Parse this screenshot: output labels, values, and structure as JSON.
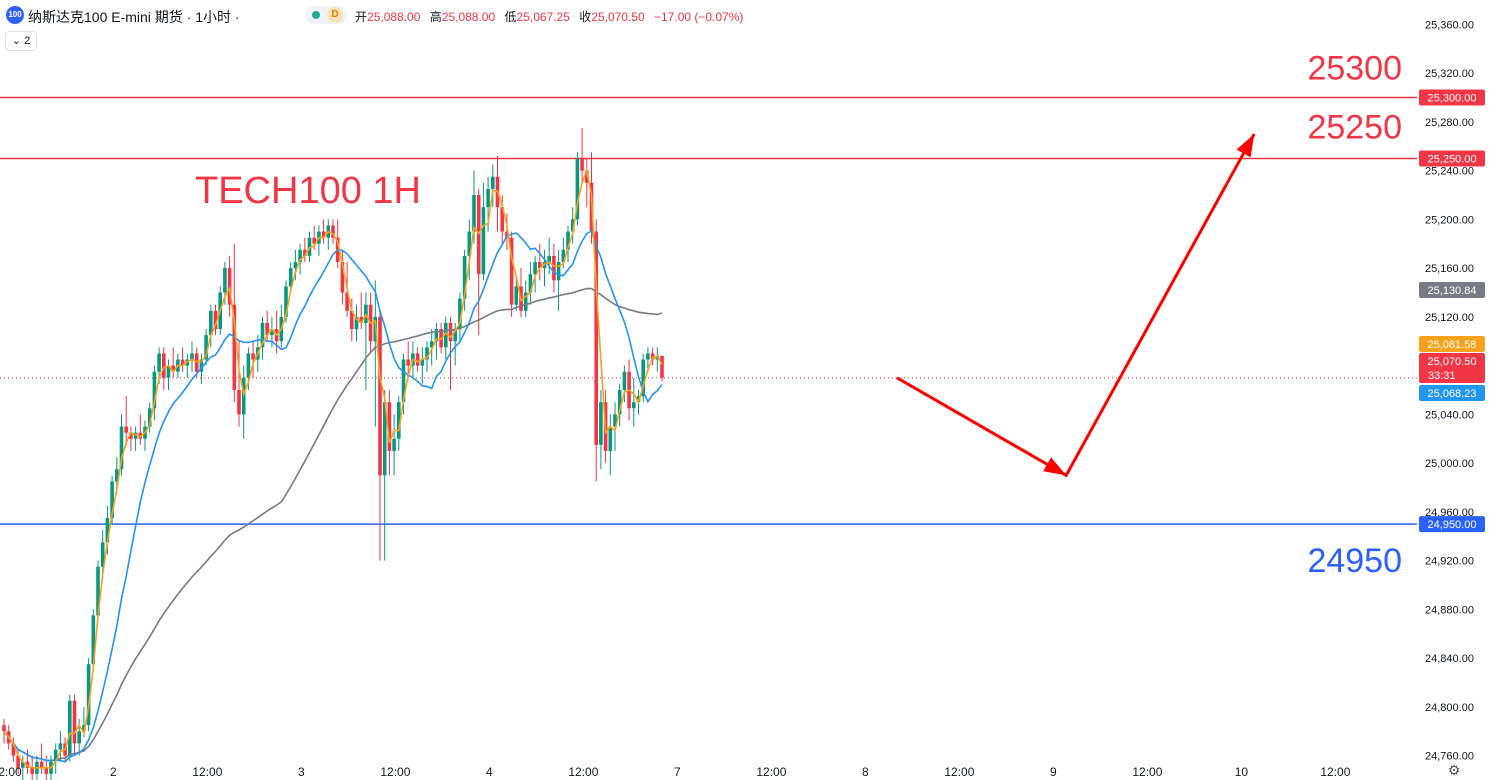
{
  "header": {
    "logo_text": "100",
    "title": "纳斯达克100 E-mini 期货 · 1小时 ·",
    "badge_letter": "D",
    "ohlc": [
      {
        "key": "开",
        "value": "25,088.00"
      },
      {
        "key": "高",
        "value": "25,088.00"
      },
      {
        "key": "低",
        "value": "25,067.25"
      },
      {
        "key": "收",
        "value": "25,070.50"
      }
    ],
    "change": "−17.00 (−0.07%)",
    "indicator_toggle": "⌄ 2"
  },
  "chart_data": {
    "type": "candlestick",
    "title": "TECH100 1H",
    "y_range": [
      24740,
      25380
    ],
    "y_ticks": [
      "25,360.00",
      "25,320.00",
      "25,280.00",
      "25,240.00",
      "25,200.00",
      "25,160.00",
      "25,120.00",
      "25,080.00",
      "25,040.00",
      "25,000.00",
      "24,960.00",
      "24,920.00",
      "24,880.00",
      "24,840.00",
      "24,800.00",
      "24,760.00"
    ],
    "y_tick_values": [
      25360,
      25320,
      25280,
      25240,
      25200,
      25160,
      25120,
      25080,
      25040,
      25000,
      24960,
      24920,
      24880,
      24840,
      24800,
      24760
    ],
    "x_labels": [
      {
        "label": "2:00",
        "bar": 0
      },
      {
        "label": "2",
        "bar": 22
      },
      {
        "label": "12:00",
        "bar": 42
      },
      {
        "label": "3",
        "bar": 62
      },
      {
        "label": "12:00",
        "bar": 82
      },
      {
        "label": "4",
        "bar": 102
      },
      {
        "label": "12:00",
        "bar": 122
      },
      {
        "label": "7",
        "bar": 142
      },
      {
        "label": "12:00",
        "bar": 162
      },
      {
        "label": "8",
        "bar": 182
      },
      {
        "label": "12:00",
        "bar": 202
      },
      {
        "label": "9",
        "bar": 222
      },
      {
        "label": "12:00",
        "bar": 242
      },
      {
        "label": "10",
        "bar": 262
      },
      {
        "label": "12:00",
        "bar": 282
      }
    ],
    "candles": [
      [
        24785,
        24790,
        24770,
        24780
      ],
      [
        24780,
        24785,
        24765,
        24770
      ],
      [
        24770,
        24775,
        24755,
        24760
      ],
      [
        24760,
        24765,
        24745,
        24750
      ],
      [
        24750,
        24760,
        24740,
        24755
      ],
      [
        24755,
        24765,
        24745,
        24750
      ],
      [
        24750,
        24760,
        24740,
        24745
      ],
      [
        24745,
        24760,
        24735,
        24755
      ],
      [
        24755,
        24770,
        24745,
        24750
      ],
      [
        24750,
        24760,
        24740,
        24745
      ],
      [
        24745,
        24760,
        24735,
        24755
      ],
      [
        24755,
        24770,
        24745,
        24765
      ],
      [
        24765,
        24780,
        24755,
        24770
      ],
      [
        24770,
        24775,
        24755,
        24760
      ],
      [
        24760,
        24810,
        24755,
        24805
      ],
      [
        24805,
        24810,
        24760,
        24770
      ],
      [
        24770,
        24790,
        24760,
        24780
      ],
      [
        24780,
        24800,
        24775,
        24785
      ],
      [
        24785,
        24840,
        24780,
        24835
      ],
      [
        24835,
        24880,
        24830,
        24875
      ],
      [
        24875,
        24920,
        24870,
        24915
      ],
      [
        24915,
        24945,
        24905,
        24935
      ],
      [
        24935,
        24965,
        24925,
        24955
      ],
      [
        24955,
        24990,
        24950,
        24985
      ],
      [
        24985,
        25005,
        24975,
        24995
      ],
      [
        24995,
        25040,
        24990,
        25030
      ],
      [
        25030,
        25055,
        25015,
        25025
      ],
      [
        25025,
        25030,
        25010,
        25020
      ],
      [
        25020,
        25030,
        25010,
        25025
      ],
      [
        25025,
        25040,
        25015,
        25020
      ],
      [
        25020,
        25035,
        25010,
        25030
      ],
      [
        25030,
        25050,
        25025,
        25045
      ],
      [
        25045,
        25080,
        25035,
        25075
      ],
      [
        25075,
        25095,
        25065,
        25090
      ],
      [
        25090,
        25095,
        25060,
        25070
      ],
      [
        25070,
        25085,
        25060,
        25080
      ],
      [
        25080,
        25095,
        25070,
        25075
      ],
      [
        25075,
        25090,
        25070,
        25085
      ],
      [
        25085,
        25095,
        25075,
        25080
      ],
      [
        25080,
        25090,
        25070,
        25085
      ],
      [
        25085,
        25100,
        25075,
        25090
      ],
      [
        25090,
        25095,
        25070,
        25075
      ],
      [
        25075,
        25090,
        25065,
        25085
      ],
      [
        25085,
        25110,
        25080,
        25105
      ],
      [
        25105,
        25130,
        25095,
        25125
      ],
      [
        25125,
        25130,
        25105,
        25110
      ],
      [
        25110,
        25145,
        25105,
        25140
      ],
      [
        25140,
        25165,
        25130,
        25160
      ],
      [
        25160,
        25170,
        25120,
        25130
      ],
      [
        25130,
        25180,
        25050,
        25060
      ],
      [
        25060,
        25100,
        25030,
        25040
      ],
      [
        25040,
        25080,
        25020,
        25070
      ],
      [
        25070,
        25095,
        25060,
        25090
      ],
      [
        25090,
        25100,
        25070,
        25085
      ],
      [
        25085,
        25105,
        25075,
        25095
      ],
      [
        25095,
        25120,
        25085,
        25115
      ],
      [
        25115,
        25125,
        25100,
        25105
      ],
      [
        25105,
        25120,
        25095,
        25110
      ],
      [
        25110,
        25125,
        25090,
        25100
      ],
      [
        25100,
        25130,
        25095,
        25120
      ],
      [
        25120,
        25150,
        25115,
        25145
      ],
      [
        25145,
        25165,
        25140,
        25160
      ],
      [
        25160,
        25175,
        25150,
        25165
      ],
      [
        25165,
        25180,
        25155,
        25175
      ],
      [
        25175,
        25185,
        25165,
        25170
      ],
      [
        25170,
        25190,
        25165,
        25185
      ],
      [
        25185,
        25195,
        25175,
        25180
      ],
      [
        25180,
        25195,
        25170,
        25190
      ],
      [
        25190,
        25200,
        25180,
        25185
      ],
      [
        25185,
        25200,
        25175,
        25195
      ],
      [
        25195,
        25200,
        25180,
        25185
      ],
      [
        25185,
        25200,
        25160,
        25165
      ],
      [
        25165,
        25175,
        25130,
        25140
      ],
      [
        25140,
        25165,
        25120,
        25125
      ],
      [
        25125,
        25135,
        25100,
        25110
      ],
      [
        25110,
        25130,
        25100,
        25120
      ],
      [
        25120,
        25140,
        25110,
        25115
      ],
      [
        25115,
        25140,
        25060,
        25130
      ],
      [
        25130,
        25140,
        25090,
        25100
      ],
      [
        25100,
        25150,
        25030,
        25120
      ],
      [
        25120,
        25125,
        24920,
        24990
      ],
      [
        24990,
        25060,
        24920,
        25050
      ],
      [
        25050,
        25060,
        24990,
        25010
      ],
      [
        25010,
        25040,
        24990,
        25020
      ],
      [
        25020,
        25055,
        25010,
        25050
      ],
      [
        25050,
        25090,
        25040,
        25085
      ],
      [
        25085,
        25100,
        25070,
        25080
      ],
      [
        25080,
        25100,
        25070,
        25090
      ],
      [
        25090,
        25095,
        25075,
        25080
      ],
      [
        25080,
        25095,
        25065,
        25085
      ],
      [
        25085,
        25100,
        25075,
        25095
      ],
      [
        25095,
        25110,
        25080,
        25100
      ],
      [
        25100,
        25115,
        25085,
        25110
      ],
      [
        25110,
        25115,
        25090,
        25095
      ],
      [
        25095,
        25120,
        25085,
        25115
      ],
      [
        25115,
        25120,
        25060,
        25100
      ],
      [
        25100,
        25115,
        25080,
        25110
      ],
      [
        25110,
        25140,
        25100,
        25135
      ],
      [
        25135,
        25175,
        25125,
        25170
      ],
      [
        25170,
        25200,
        25150,
        25190
      ],
      [
        25190,
        25240,
        25180,
        25220
      ],
      [
        25220,
        25225,
        25105,
        25155
      ],
      [
        25155,
        25230,
        25150,
        25210
      ],
      [
        25210,
        25235,
        25190,
        25225
      ],
      [
        25225,
        25245,
        25210,
        25235
      ],
      [
        25235,
        25252,
        25190,
        25210
      ],
      [
        25210,
        25220,
        25180,
        25190
      ],
      [
        25190,
        25205,
        25175,
        25185
      ],
      [
        25185,
        25190,
        25120,
        25130
      ],
      [
        25130,
        25150,
        25125,
        25145
      ],
      [
        25145,
        25160,
        25120,
        25125
      ],
      [
        25125,
        25150,
        25120,
        25140
      ],
      [
        25140,
        25165,
        25130,
        25155
      ],
      [
        25155,
        25170,
        25140,
        25165
      ],
      [
        25165,
        25180,
        25150,
        25160
      ],
      [
        25160,
        25175,
        25145,
        25165
      ],
      [
        25165,
        25185,
        25155,
        25170
      ],
      [
        25170,
        25180,
        25140,
        25150
      ],
      [
        25150,
        25175,
        25125,
        25165
      ],
      [
        25165,
        25185,
        25160,
        25175
      ],
      [
        25175,
        25195,
        25165,
        25190
      ],
      [
        25190,
        25210,
        25180,
        25200
      ],
      [
        25200,
        25255,
        25195,
        25250
      ],
      [
        25250,
        25275,
        25230,
        25240
      ],
      [
        25240,
        25250,
        25210,
        25230
      ],
      [
        25230,
        25255,
        25180,
        25190
      ],
      [
        25190,
        25200,
        24985,
        25015
      ],
      [
        25015,
        25060,
        24995,
        25050
      ],
      [
        25050,
        25060,
        25000,
        25010
      ],
      [
        25010,
        25040,
        24990,
        25030
      ],
      [
        25030,
        25050,
        25010,
        25040
      ],
      [
        25040,
        25065,
        25030,
        25060
      ],
      [
        25060,
        25080,
        25050,
        25075
      ],
      [
        25075,
        25085,
        25035,
        25045
      ],
      [
        25045,
        25070,
        25030,
        25050
      ],
      [
        25050,
        25060,
        25040,
        25055
      ],
      [
        25055,
        25090,
        25050,
        25085
      ],
      [
        25085,
        25095,
        25075,
        25090
      ],
      [
        25090,
        25095,
        25080,
        25085
      ],
      [
        25085,
        25095,
        25075,
        25088
      ],
      [
        25088,
        25088,
        25067,
        25070
      ]
    ],
    "ma_fast": {
      "color": "#f7a21b"
    },
    "ma_mid": {
      "color": "#2196f3"
    },
    "ma_slow": {
      "color": "#787b86"
    },
    "horizontal_lines": [
      {
        "value": 25300,
        "color": "#f23645",
        "price_label": "25,300.00",
        "annotation": "25300"
      },
      {
        "value": 25250,
        "color": "#f23645",
        "price_label": "25,250.00",
        "annotation": "25250"
      },
      {
        "value": 24950,
        "color": "#2962ff",
        "price_label": "24,950.00",
        "annotation": "24950"
      }
    ],
    "price_tags": [
      {
        "value": 25130.84,
        "label": "25,130.84",
        "color": "#787b86"
      },
      {
        "value": 25081.58,
        "label": "25,081.58",
        "color": "#f7a21b"
      },
      {
        "value": 25070.5,
        "label": "25,070.50",
        "sub": "33:31",
        "color": "#f23645"
      },
      {
        "value": 25068.23,
        "label": "25,068.23",
        "color": "#2196f3"
      }
    ],
    "projection_arrow": {
      "color": "#ff0000",
      "points": [
        [
          190,
          25070
        ],
        [
          226,
          24990
        ],
        [
          266,
          25270
        ]
      ]
    }
  }
}
